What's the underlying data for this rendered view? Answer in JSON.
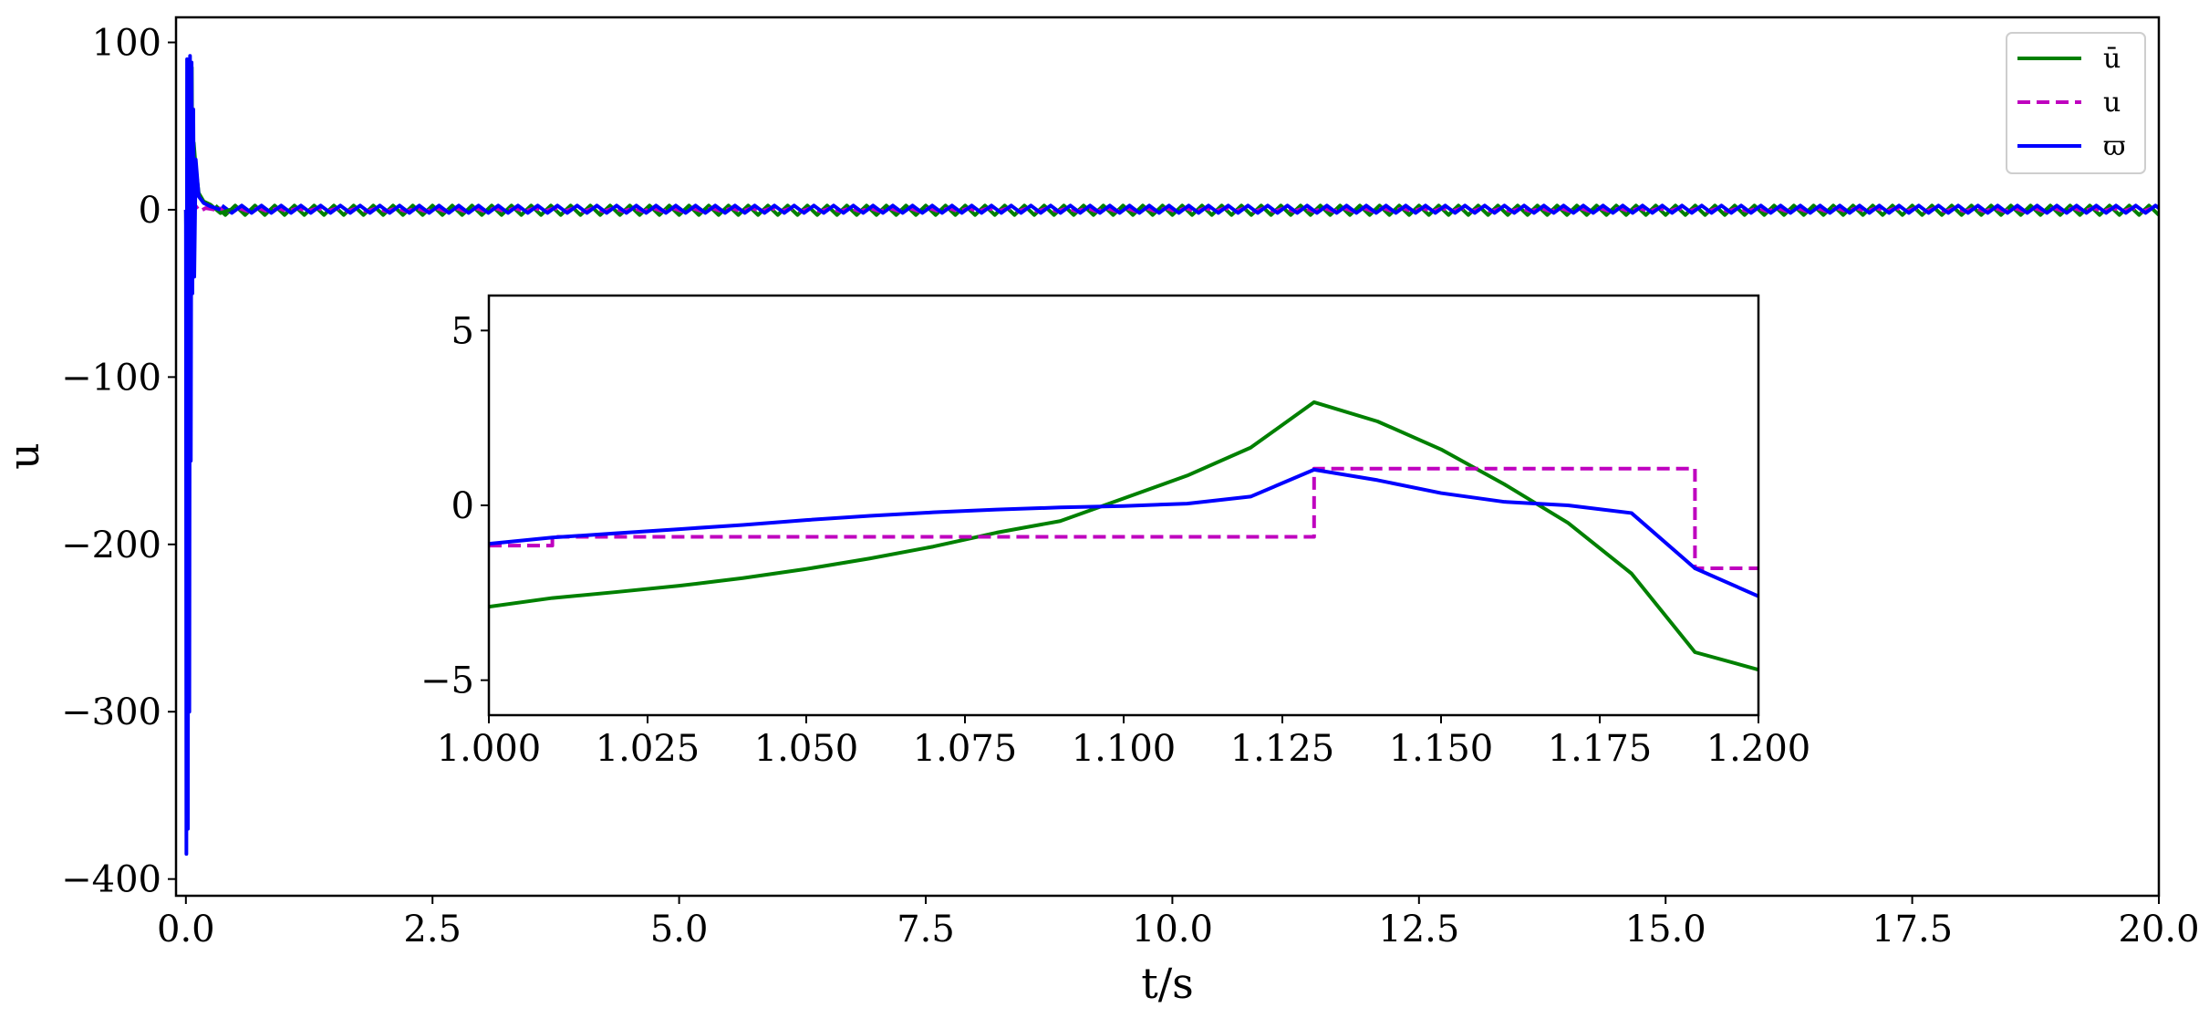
{
  "chart_data": [
    {
      "type": "line",
      "panel": "main",
      "xlabel": "t/s",
      "ylabel": "u",
      "xlim": [
        -0.1,
        20.0
      ],
      "ylim": [
        -410,
        115
      ],
      "xticks": [
        "0.0",
        "2.5",
        "5.0",
        "7.5",
        "10.0",
        "12.5",
        "15.0",
        "17.5",
        "20.0"
      ],
      "yticks": [
        "100",
        "0",
        "−100",
        "−200",
        "−300",
        "−400"
      ],
      "xtick_values": [
        0,
        2.5,
        5.0,
        7.5,
        10.0,
        12.5,
        15.0,
        17.5,
        20.0
      ],
      "ytick_values": [
        100,
        0,
        -100,
        -200,
        -300,
        -400
      ],
      "grid": false,
      "legend_position": "top-right",
      "series": [
        {
          "name": "ū",
          "color": "#008000",
          "style": "solid",
          "transient": {
            "x": [
              0,
              0.01,
              0.02,
              0.03,
              0.04,
              0.05,
              0.06,
              0.07,
              0.08,
              0.1,
              0.13,
              0.18,
              0.25,
              0.35,
              0.45
            ],
            "y": [
              0,
              -55,
              80,
              -40,
              60,
              -20,
              85,
              -30,
              40,
              25,
              10,
              5,
              3,
              -2,
              0
            ]
          },
          "oscillation": {
            "start": 0.3,
            "end": 20.0,
            "period": 0.2,
            "amplitude": 2.8,
            "offset": -0.3
          }
        },
        {
          "name": "u",
          "color": "#bf00bf",
          "style": "dashed",
          "transient": {
            "x": [
              0,
              0.02,
              0.04,
              0.06,
              0.09,
              0.14,
              0.2,
              0.3
            ],
            "y": [
              0,
              -20,
              10,
              -5,
              3,
              -1,
              1,
              0
            ]
          },
          "oscillation": {
            "start": 0.3,
            "end": 20.0,
            "period": 0.2,
            "amplitude": 1.0,
            "offset": 0
          }
        },
        {
          "name": "ϖ",
          "color": "#0000ff",
          "style": "solid",
          "transient": {
            "x": [
              0,
              0.005,
              0.012,
              0.02,
              0.028,
              0.035,
              0.042,
              0.05,
              0.058,
              0.066,
              0.075,
              0.085,
              0.1,
              0.13,
              0.18,
              0.25,
              0.35
            ],
            "y": [
              0,
              -385,
              90,
              -370,
              85,
              -300,
              92,
              -150,
              88,
              -50,
              60,
              -40,
              30,
              8,
              4,
              2,
              0
            ]
          },
          "oscillation": {
            "start": 0.3,
            "end": 20.0,
            "period": 0.2,
            "amplitude": 2.2,
            "offset": 0.3
          }
        }
      ]
    },
    {
      "type": "line",
      "panel": "inset",
      "xlim": [
        1.0,
        1.2
      ],
      "ylim": [
        -6,
        6
      ],
      "xticks": [
        "1.000",
        "1.025",
        "1.050",
        "1.075",
        "1.100",
        "1.125",
        "1.150",
        "1.175",
        "1.200"
      ],
      "yticks": [
        "5",
        "0",
        "−5"
      ],
      "xtick_values": [
        1.0,
        1.025,
        1.05,
        1.075,
        1.1,
        1.125,
        1.15,
        1.175,
        1.2
      ],
      "ytick_values": [
        5,
        0,
        -5
      ],
      "series": [
        {
          "name": "ū",
          "color": "#008000",
          "style": "solid",
          "x": [
            1.0,
            1.01,
            1.02,
            1.03,
            1.04,
            1.05,
            1.06,
            1.07,
            1.08,
            1.09,
            1.1,
            1.11,
            1.12,
            1.13,
            1.14,
            1.15,
            1.16,
            1.17,
            1.18,
            1.19,
            1.2
          ],
          "y": [
            -2.9,
            -2.65,
            -2.48,
            -2.3,
            -2.08,
            -1.82,
            -1.52,
            -1.18,
            -0.78,
            -0.45,
            0.2,
            0.85,
            1.65,
            2.95,
            2.4,
            1.6,
            0.6,
            -0.5,
            -1.95,
            -4.2,
            -4.7
          ]
        },
        {
          "name": "u",
          "color": "#bf00bf",
          "style": "dashed",
          "x": [
            1.0,
            1.01,
            1.01,
            1.13,
            1.13,
            1.19,
            1.19,
            1.2
          ],
          "y": [
            -1.15,
            -1.15,
            -0.9,
            -0.9,
            1.05,
            1.05,
            -1.8,
            -1.8
          ]
        },
        {
          "name": "ϖ",
          "color": "#0000ff",
          "style": "solid",
          "x": [
            1.0,
            1.01,
            1.02,
            1.03,
            1.04,
            1.05,
            1.06,
            1.07,
            1.08,
            1.09,
            1.1,
            1.11,
            1.12,
            1.13,
            1.14,
            1.15,
            1.16,
            1.17,
            1.18,
            1.19,
            1.2
          ],
          "y": [
            -1.1,
            -0.92,
            -0.8,
            -0.68,
            -0.56,
            -0.42,
            -0.3,
            -0.2,
            -0.12,
            -0.06,
            -0.02,
            0.05,
            0.25,
            1.02,
            0.72,
            0.35,
            0.1,
            0.0,
            -0.22,
            -1.8,
            -2.6
          ]
        }
      ]
    }
  ]
}
